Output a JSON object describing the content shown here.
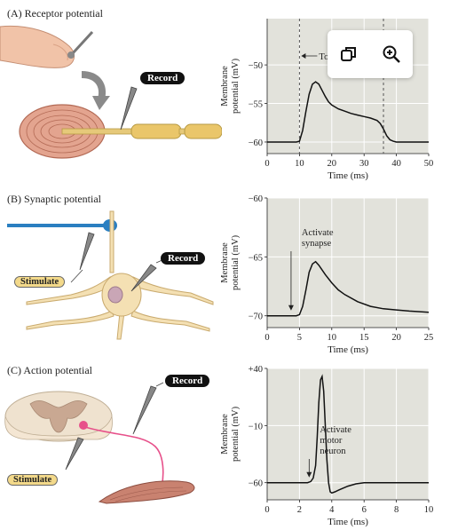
{
  "panels": [
    {
      "id": "A",
      "label": "(A) Receptor potential",
      "callout": "Record",
      "annotation": "Touch",
      "chart_data": {
        "type": "line",
        "xlabel": "Time (ms)",
        "ylabel": "Membrane potential (mV)",
        "xticks": [
          0,
          10,
          20,
          30,
          40,
          50
        ],
        "yticks": [
          -60,
          -55,
          -50
        ],
        "xlim": [
          0,
          50
        ],
        "ylim": [
          -61.5,
          -44
        ],
        "vlines": [
          10,
          36
        ],
        "x": [
          0,
          9,
          10,
          11,
          12,
          13,
          14,
          15,
          16,
          17,
          18,
          19,
          20,
          22,
          24,
          26,
          28,
          30,
          32,
          34,
          35,
          36,
          37,
          38,
          39,
          40,
          42,
          45,
          50
        ],
        "y": [
          -60,
          -60,
          -59.9,
          -58.5,
          -56,
          -53.8,
          -52.5,
          -52.2,
          -52.5,
          -53.3,
          -54.1,
          -54.8,
          -55.2,
          -55.7,
          -56.0,
          -56.3,
          -56.5,
          -56.7,
          -56.9,
          -57.2,
          -57.6,
          -58.3,
          -59.2,
          -59.7,
          -59.9,
          -60,
          -60,
          -60,
          -60
        ]
      }
    },
    {
      "id": "B",
      "label": "(B) Synaptic potential",
      "callout": "Record",
      "stimulate": "Stimulate",
      "annotation_lines": [
        "Activate",
        "synapse"
      ],
      "chart_data": {
        "type": "line",
        "xlabel": "Time (ms)",
        "ylabel": "Membrane potential (mV)",
        "xticks": [
          0,
          5,
          10,
          15,
          20,
          25
        ],
        "yticks": [
          -70,
          -65,
          -60
        ],
        "xlim": [
          0,
          25
        ],
        "ylim": [
          -71,
          -60
        ],
        "arrow_x": 3.7,
        "x": [
          0,
          4.5,
          5,
          5.5,
          6,
          6.5,
          7,
          7.5,
          8,
          9,
          10,
          11,
          12,
          14,
          16,
          18,
          20,
          22,
          25
        ],
        "y": [
          -70,
          -70,
          -69.9,
          -69.2,
          -67.8,
          -66.3,
          -65.6,
          -65.4,
          -65.7,
          -66.5,
          -67.2,
          -67.8,
          -68.2,
          -68.8,
          -69.2,
          -69.4,
          -69.5,
          -69.6,
          -69.7
        ]
      }
    },
    {
      "id": "C",
      "label": "(C) Action potential",
      "callout": "Record",
      "stimulate": "Stimulate",
      "annotation_lines": [
        "Activate",
        "motor",
        "neuron"
      ],
      "chart_data": {
        "type": "line",
        "xlabel": "Time (ms)",
        "ylabel": "Membrane potential (mV)",
        "xticks": [
          0,
          2,
          4,
          6,
          8,
          10
        ],
        "ytick_labels": [
          "+40",
          "−10",
          "−60"
        ],
        "yticks": [
          40,
          -10,
          -60
        ],
        "xlim": [
          0,
          10
        ],
        "ylim": [
          -75,
          40
        ],
        "arrow_x": 2.6,
        "x": [
          0,
          2.5,
          2.7,
          2.85,
          3.0,
          3.1,
          3.2,
          3.3,
          3.4,
          3.5,
          3.6,
          3.7,
          3.8,
          3.9,
          4.0,
          4.2,
          4.5,
          5.0,
          5.5,
          6,
          7,
          8,
          10
        ],
        "y": [
          -60,
          -60,
          -59,
          -56,
          -45,
          -20,
          10,
          30,
          33,
          20,
          -10,
          -40,
          -60,
          -68,
          -69,
          -68,
          -66,
          -63,
          -61,
          -60,
          -60,
          -60,
          -60
        ]
      }
    }
  ],
  "icons": [
    "duplicate-icon",
    "zoom-in-icon"
  ]
}
